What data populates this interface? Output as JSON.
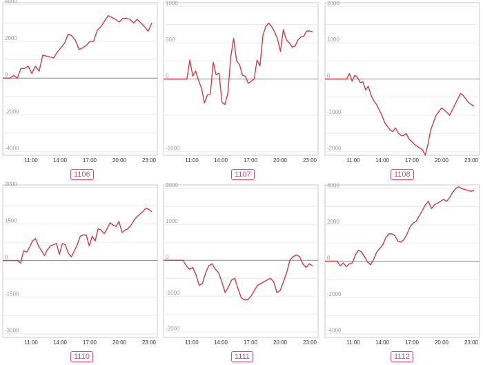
{
  "chart_data": [
    {
      "type": "line",
      "title": "1106",
      "xticks": [
        "11:00",
        "14:00",
        "17:00",
        "20:00",
        "23:00"
      ],
      "yticks": [
        -4000,
        -2000,
        0,
        2000,
        4000
      ],
      "ylim": [
        -4200,
        4100
      ],
      "series": [
        {
          "values": [
            0,
            0,
            0,
            150,
            -10,
            520,
            520,
            650,
            250,
            650,
            380,
            1250,
            1200,
            1150,
            1100,
            1420,
            1650,
            1900,
            2400,
            2300,
            2050,
            1550,
            1650,
            1780,
            2000,
            2000,
            2600,
            2800,
            3100,
            3400,
            3300,
            3200,
            3050,
            3250,
            3250,
            3200,
            3000,
            3200,
            3000,
            2800,
            2550,
            3000
          ]
        }
      ],
      "color": "#d9363e"
    },
    {
      "type": "line",
      "title": "1107",
      "xticks": [
        "11:00",
        "14:00",
        "17:00",
        "20:00",
        "23:00"
      ],
      "yticks": [
        -1000,
        0,
        500,
        1000
      ],
      "ylim": [
        -1050,
        1050
      ],
      "series": [
        {
          "values": [
            0,
            0,
            0,
            0,
            0,
            0,
            0,
            0,
            0,
            260,
            40,
            110,
            -20,
            -130,
            -330,
            -220,
            -210,
            230,
            60,
            80,
            -320,
            -350,
            -200,
            300,
            560,
            250,
            200,
            50,
            40,
            -60,
            -30,
            0,
            260,
            180,
            600,
            720,
            770,
            720,
            650,
            550,
            380,
            680,
            540,
            500,
            440,
            450,
            540,
            580,
            590,
            660,
            660,
            650
          ]
        }
      ],
      "color": "#d9363e"
    },
    {
      "type": "line",
      "title": "1108",
      "xticks": [
        "11:00",
        "14:00",
        "17:00",
        "20:00",
        "23:00"
      ],
      "yticks": [
        -2000,
        -1000,
        0,
        1000,
        2000
      ],
      "ylim": [
        -2100,
        2100
      ],
      "series": [
        {
          "values": [
            0,
            0,
            0,
            0,
            0,
            0,
            0,
            0,
            0,
            150,
            -60,
            100,
            50,
            -100,
            -80,
            -300,
            -200,
            -450,
            -600,
            -700,
            -850,
            -1000,
            -1200,
            -1300,
            -1400,
            -1450,
            -1350,
            -1480,
            -1550,
            -1560,
            -1500,
            -1650,
            -1720,
            -1800,
            -1850,
            -1900,
            -1950,
            -2100,
            -1800,
            -1400,
            -1200,
            -1000,
            -900,
            -800,
            -850,
            -920,
            -1000,
            -850,
            -700,
            -550,
            -400,
            -450,
            -550,
            -650,
            -700,
            -750
          ]
        }
      ],
      "color": "#d9363e"
    },
    {
      "type": "line",
      "title": "1110",
      "xticks": [
        "11:00",
        "14:00",
        "17:00",
        "20:00",
        "23:00"
      ],
      "yticks": [
        -3000,
        -1500,
        0,
        1500,
        3000
      ],
      "ylim": [
        -3150,
        3100
      ],
      "series": [
        {
          "values": [
            0,
            0,
            0,
            0,
            0,
            0,
            -100,
            400,
            350,
            550,
            800,
            900,
            600,
            400,
            200,
            450,
            600,
            650,
            700,
            250,
            700,
            650,
            300,
            150,
            400,
            650,
            1000,
            1050,
            1050,
            600,
            1000,
            800,
            1300,
            1250,
            1100,
            1300,
            1550,
            1450,
            1400,
            1600,
            1150,
            1250,
            1300,
            1450,
            1650,
            1800,
            1900,
            2000,
            2150,
            2100,
            2000
          ]
        }
      ],
      "color": "#d9363e"
    },
    {
      "type": "line",
      "title": "1111",
      "xticks": [
        "11:00",
        "14:00",
        "17:00",
        "20:00",
        "23:00"
      ],
      "yticks": [
        -2000,
        -1000,
        0,
        1000,
        2000
      ],
      "ylim": [
        -2150,
        2100
      ],
      "series": [
        {
          "values": [
            0,
            0,
            0,
            0,
            0,
            0,
            0,
            -150,
            -250,
            -200,
            -400,
            -700,
            -650,
            -350,
            -150,
            -100,
            -250,
            -350,
            -600,
            -900,
            -750,
            -550,
            -500,
            -800,
            -1050,
            -1100,
            -1100,
            -1000,
            -850,
            -700,
            -650,
            -600,
            -550,
            -500,
            -600,
            -900,
            -850,
            -600,
            -350,
            0,
            100,
            150,
            100,
            -100,
            -200,
            -100,
            -150
          ]
        }
      ],
      "color": "#d9363e"
    },
    {
      "type": "line",
      "title": "1112",
      "xticks": [
        "11:00",
        "14:00",
        "17:00",
        "20:00",
        "23:00"
      ],
      "yticks": [
        -4000,
        -2000,
        0,
        2000,
        4000
      ],
      "ylim": [
        -4200,
        4200
      ],
      "series": [
        {
          "values": [
            0,
            0,
            0,
            0,
            0,
            -250,
            -100,
            -300,
            -150,
            -100,
            350,
            600,
            500,
            250,
            -50,
            -200,
            100,
            500,
            700,
            900,
            1300,
            1500,
            1500,
            1400,
            1100,
            1050,
            1200,
            1500,
            1900,
            2100,
            2200,
            2500,
            2800,
            3100,
            3300,
            2900,
            3100,
            3200,
            3300,
            3400,
            3300,
            3500,
            3800,
            4000,
            4100,
            4000,
            3950,
            3900,
            3850,
            3900
          ]
        }
      ],
      "color": "#d9363e"
    }
  ]
}
